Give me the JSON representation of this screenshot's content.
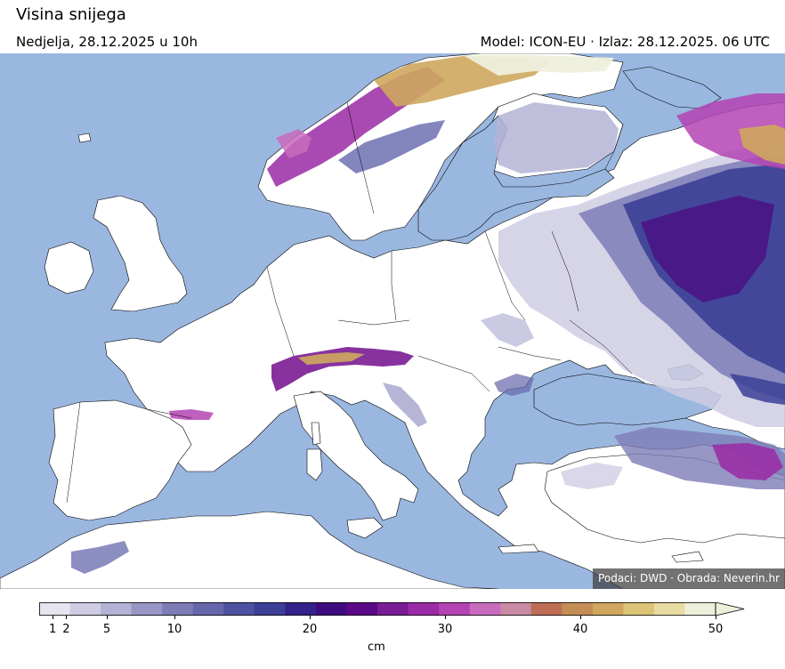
{
  "header": {
    "title": "Visina snijega",
    "date_line": "Nedjelja, 28.12.2025 u 10h",
    "model_line": "Model: ICON-EU · Izlaz: 28.12.2025. 06 UTC"
  },
  "map": {
    "credit": "Podaci: DWD · Obrada: Neverin.hr",
    "land_color": "#ffffff",
    "sea_color": "#9ab7e0",
    "border_color": "#000000"
  },
  "legend": {
    "unit": "cm",
    "min": 0,
    "max": 50,
    "extend": "max",
    "tick_labels": [
      "1",
      "2",
      "5",
      "10",
      "20",
      "30",
      "40",
      "50"
    ],
    "tick_values": [
      1,
      2,
      5,
      10,
      20,
      30,
      40,
      50
    ],
    "colors": [
      "#e6e4ee",
      "#cfcde3",
      "#b4b3d5",
      "#9796c4",
      "#7d7cb6",
      "#6667ab",
      "#4d52a0",
      "#3b3f96",
      "#35218a",
      "#3f0c80",
      "#5a0a87",
      "#7a1c95",
      "#9a2aa5",
      "#b443b3",
      "#c96bbd",
      "#c88aa4",
      "#be6d55",
      "#c58d56",
      "#cfa75e",
      "#dcc476",
      "#e8dca2",
      "#eef0dc"
    ]
  }
}
